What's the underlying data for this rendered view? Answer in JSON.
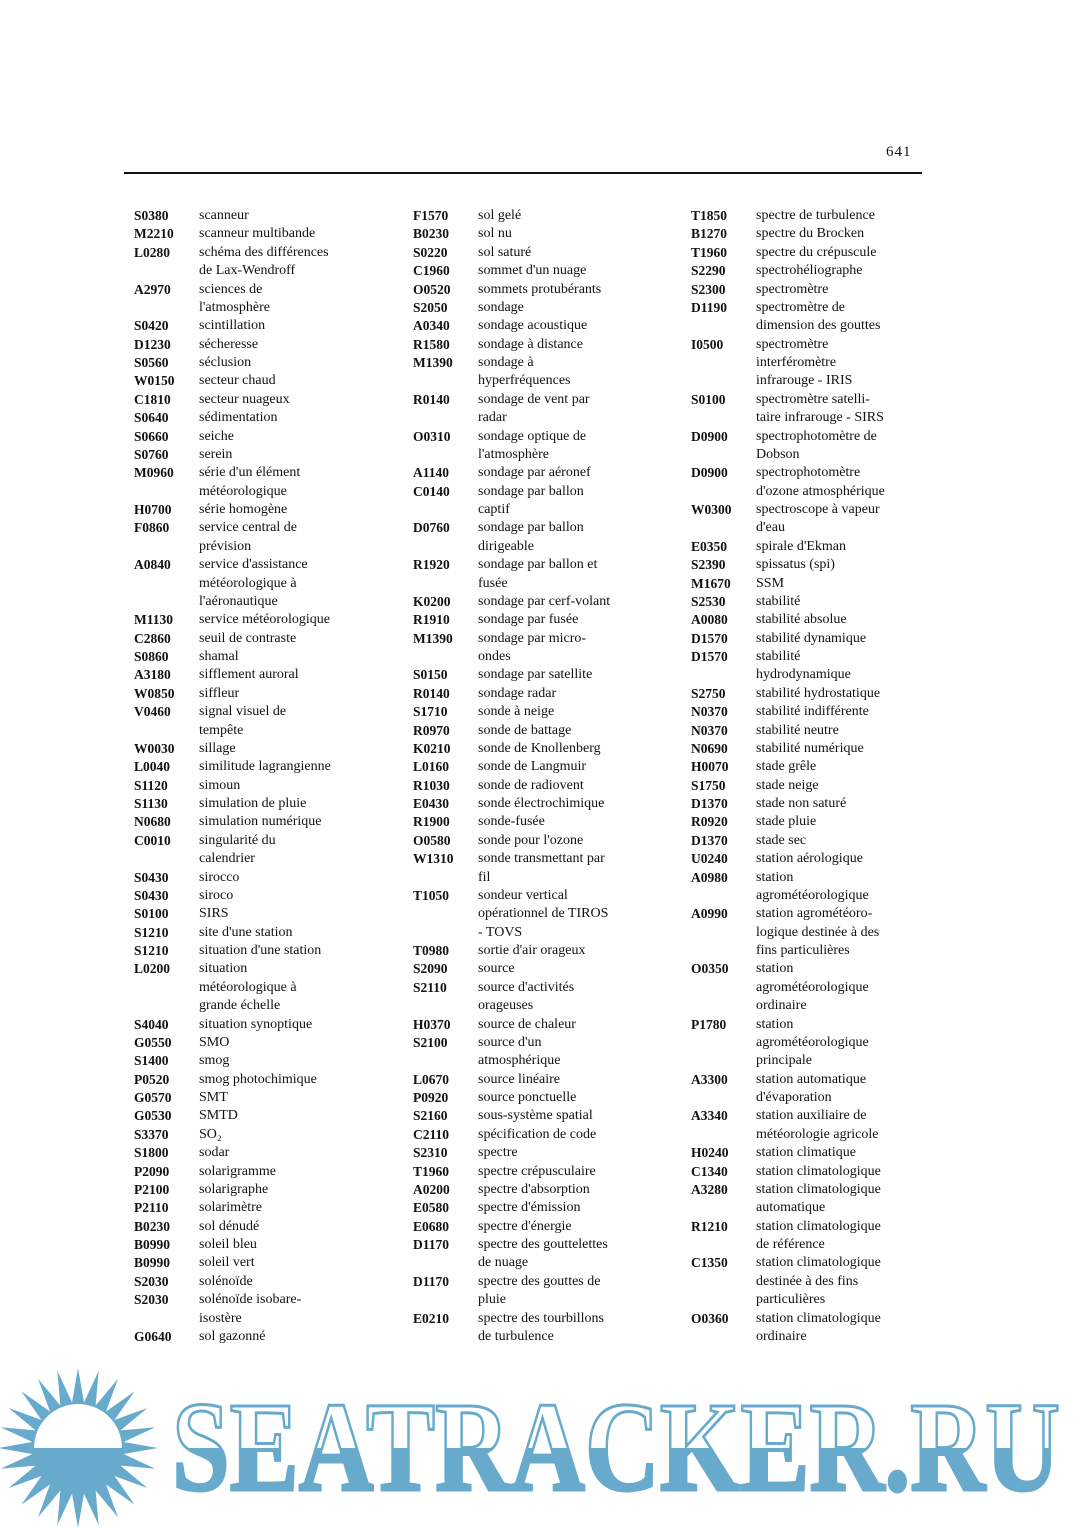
{
  "page_number": "641",
  "columns": [
    [
      {
        "code": "S0380",
        "term": "scanneur"
      },
      {
        "code": "M2210",
        "term": "scanneur multibande"
      },
      {
        "code": "L0280",
        "term": "schéma des différences\nde Lax-Wendroff"
      },
      {
        "code": "A2970",
        "term": "sciences de\nl'atmosphère"
      },
      {
        "code": "S0420",
        "term": "scintillation"
      },
      {
        "code": "D1230",
        "term": "sécheresse"
      },
      {
        "code": "S0560",
        "term": "séclusion"
      },
      {
        "code": "W0150",
        "term": "secteur chaud"
      },
      {
        "code": "C1810",
        "term": "secteur nuageux"
      },
      {
        "code": "S0640",
        "term": "sédimentation"
      },
      {
        "code": "S0660",
        "term": "seiche"
      },
      {
        "code": "S0760",
        "term": "serein"
      },
      {
        "code": "M0960",
        "term": "série d'un élément\nmétéorologique"
      },
      {
        "code": "H0700",
        "term": "série homogène"
      },
      {
        "code": "F0860",
        "term": "service central de\nprévision"
      },
      {
        "code": "A0840",
        "term": "service d'assistance\nmétéorologique à\nl'aéronautique"
      },
      {
        "code": "M1130",
        "term": "service météorologique"
      },
      {
        "code": "C2860",
        "term": "seuil de contraste"
      },
      {
        "code": "S0860",
        "term": "shamal"
      },
      {
        "code": "A3180",
        "term": "sifflement auroral"
      },
      {
        "code": "W0850",
        "term": "siffleur"
      },
      {
        "code": "V0460",
        "term": "signal visuel de\ntempête"
      },
      {
        "code": "W0030",
        "term": "sillage"
      },
      {
        "code": "L0040",
        "term": "similitude lagrangienne"
      },
      {
        "code": "S1120",
        "term": "simoun"
      },
      {
        "code": "S1130",
        "term": "simulation de pluie"
      },
      {
        "code": "N0680",
        "term": "simulation numérique"
      },
      {
        "code": "C0010",
        "term": "singularité du\ncalendrier"
      },
      {
        "code": "S0430",
        "term": "sirocco"
      },
      {
        "code": "S0430",
        "term": "siroco"
      },
      {
        "code": "S0100",
        "term": "SIRS"
      },
      {
        "code": "S1210",
        "term": "site d'une station"
      },
      {
        "code": "S1210",
        "term": "situation d'une station"
      },
      {
        "code": "L0200",
        "term": "situation\nmétéorologique à\ngrande échelle"
      },
      {
        "code": "S4040",
        "term": "situation synoptique"
      },
      {
        "code": "G0550",
        "term": "SMO"
      },
      {
        "code": "S1400",
        "term": "smog"
      },
      {
        "code": "P0520",
        "term": "smog photochimique"
      },
      {
        "code": "G0570",
        "term": "SMT"
      },
      {
        "code": "G0530",
        "term": "SMTD"
      },
      {
        "code": "S3370",
        "term": "SO₂"
      },
      {
        "code": "S1800",
        "term": "sodar"
      },
      {
        "code": "P2090",
        "term": "solarigramme"
      },
      {
        "code": "P2100",
        "term": "solarigraphe"
      },
      {
        "code": "P2110",
        "term": "solarimètre"
      },
      {
        "code": "B0230",
        "term": "sol dénudé"
      },
      {
        "code": "B0990",
        "term": "soleil bleu"
      },
      {
        "code": "B0990",
        "term": "soleil vert"
      },
      {
        "code": "S2030",
        "term": "solénoïde"
      },
      {
        "code": "S2030",
        "term": "solénoïde isobare-\nisostère"
      },
      {
        "code": "G0640",
        "term": "sol gazonné"
      }
    ],
    [
      {
        "code": "F1570",
        "term": "sol gelé"
      },
      {
        "code": "B0230",
        "term": "sol nu"
      },
      {
        "code": "S0220",
        "term": "sol saturé"
      },
      {
        "code": "C1960",
        "term": "sommet d'un nuage"
      },
      {
        "code": "O0520",
        "term": "sommets protubérants"
      },
      {
        "code": "S2050",
        "term": "sondage"
      },
      {
        "code": "A0340",
        "term": "sondage acoustique"
      },
      {
        "code": "R1580",
        "term": "sondage à distance"
      },
      {
        "code": "M1390",
        "term": "sondage à\nhyperfréquences"
      },
      {
        "code": "R0140",
        "term": "sondage de vent par\nradar"
      },
      {
        "code": "O0310",
        "term": "sondage optique de\nl'atmosphère"
      },
      {
        "code": "A1140",
        "term": "sondage par aéronef"
      },
      {
        "code": "C0140",
        "term": "sondage par ballon\ncaptif"
      },
      {
        "code": "D0760",
        "term": "sondage par ballon\ndirigeable"
      },
      {
        "code": "R1920",
        "term": "sondage par ballon et\nfusée"
      },
      {
        "code": "K0200",
        "term": "sondage par cerf-volant"
      },
      {
        "code": "R1910",
        "term": "sondage par fusée"
      },
      {
        "code": "M1390",
        "term": "sondage par micro-\nondes"
      },
      {
        "code": "S0150",
        "term": "sondage par satellite"
      },
      {
        "code": "R0140",
        "term": "sondage radar"
      },
      {
        "code": "S1710",
        "term": "sonde à neige"
      },
      {
        "code": "R0970",
        "term": "sonde de battage"
      },
      {
        "code": "K0210",
        "term": "sonde de Knollenberg"
      },
      {
        "code": "L0160",
        "term": "sonde de Langmuir"
      },
      {
        "code": "R1030",
        "term": "sonde de radiovent"
      },
      {
        "code": "E0430",
        "term": "sonde électrochimique"
      },
      {
        "code": "R1900",
        "term": "sonde-fusée"
      },
      {
        "code": "O0580",
        "term": "sonde pour l'ozone"
      },
      {
        "code": "W1310",
        "term": "sonde transmettant par\nfil"
      },
      {
        "code": "T1050",
        "term": "sondeur vertical\nopérationnel de TIROS\n- TOVS"
      },
      {
        "code": "T0980",
        "term": "sortie d'air orageux"
      },
      {
        "code": "S2090",
        "term": "source"
      },
      {
        "code": "S2110",
        "term": "source d'activités\norageuses"
      },
      {
        "code": "H0370",
        "term": "source de chaleur"
      },
      {
        "code": "S2100",
        "term": "source d'un\natmosphérique"
      },
      {
        "code": "L0670",
        "term": "source linéaire"
      },
      {
        "code": "P0920",
        "term": "source ponctuelle"
      },
      {
        "code": "S2160",
        "term": "sous-système spatial"
      },
      {
        "code": "C2110",
        "term": "spécification de code"
      },
      {
        "code": "S2310",
        "term": "spectre"
      },
      {
        "code": "T1960",
        "term": "spectre crépusculaire"
      },
      {
        "code": "A0200",
        "term": "spectre d'absorption"
      },
      {
        "code": "E0580",
        "term": "spectre d'émission"
      },
      {
        "code": "E0680",
        "term": "spectre d'énergie"
      },
      {
        "code": "D1170",
        "term": "spectre des gouttelettes\nde nuage"
      },
      {
        "code": "D1170",
        "term": "spectre des gouttes de\npluie"
      },
      {
        "code": "E0210",
        "term": "spectre des tourbillons\nde turbulence"
      }
    ],
    [
      {
        "code": "T1850",
        "term": "spectre de turbulence"
      },
      {
        "code": "B1270",
        "term": "spectre du Brocken"
      },
      {
        "code": "T1960",
        "term": "spectre du crépuscule"
      },
      {
        "code": "S2290",
        "term": "spectrohéliographe"
      },
      {
        "code": "S2300",
        "term": "spectromètre"
      },
      {
        "code": "D1190",
        "term": "spectromètre de\ndimension des gouttes"
      },
      {
        "code": "I0500",
        "term": "spectromètre\ninterféromètre\ninfrarouge - IRIS"
      },
      {
        "code": "S0100",
        "term": "spectromètre satelli-\ntaire infrarouge - SIRS"
      },
      {
        "code": "D0900",
        "term": "spectrophotomètre de\nDobson"
      },
      {
        "code": "D0900",
        "term": "spectrophotomètre\nd'ozone atmosphérique"
      },
      {
        "code": "W0300",
        "term": "spectroscope à vapeur\nd'eau"
      },
      {
        "code": "E0350",
        "term": "spirale d'Ekman"
      },
      {
        "code": "S2390",
        "term": "spissatus (spi)"
      },
      {
        "code": "M1670",
        "term": "SSM"
      },
      {
        "code": "S2530",
        "term": "stabilité"
      },
      {
        "code": "A0080",
        "term": "stabilité absolue"
      },
      {
        "code": "D1570",
        "term": "stabilité dynamique"
      },
      {
        "code": "D1570",
        "term": "stabilité\nhydrodynamique"
      },
      {
        "code": "S2750",
        "term": "stabilité hydrostatique"
      },
      {
        "code": "N0370",
        "term": "stabilité indifférente"
      },
      {
        "code": "N0370",
        "term": "stabilité neutre"
      },
      {
        "code": "N0690",
        "term": "stabilité numérique"
      },
      {
        "code": "H0070",
        "term": "stade grêle"
      },
      {
        "code": "S1750",
        "term": "stade neige"
      },
      {
        "code": "D1370",
        "term": "stade non saturé"
      },
      {
        "code": "R0920",
        "term": "stade pluie"
      },
      {
        "code": "D1370",
        "term": "stade sec"
      },
      {
        "code": "U0240",
        "term": "station aérologique"
      },
      {
        "code": "A0980",
        "term": "station\nagrométéorologique"
      },
      {
        "code": "A0990",
        "term": "station agrométéoro-\nlogique destinée à des\nfins particulières"
      },
      {
        "code": "O0350",
        "term": "station\nagrométéorologique\nordinaire"
      },
      {
        "code": "P1780",
        "term": "station\nagrométéorologique\nprincipale"
      },
      {
        "code": "A3300",
        "term": "station automatique\nd'évaporation"
      },
      {
        "code": "A3340",
        "term": "station auxiliaire de\nmétéorologie agricole"
      },
      {
        "code": "H0240",
        "term": "station climatique"
      },
      {
        "code": "C1340",
        "term": "station climatologique"
      },
      {
        "code": "A3280",
        "term": "station climatologique\nautomatique"
      },
      {
        "code": "R1210",
        "term": "station climatologique\nde référence"
      },
      {
        "code": "C1350",
        "term": "station climatologique\ndestinée à des fins\nparticulières"
      },
      {
        "code": "O0360",
        "term": "station climatologique\nordinaire"
      }
    ]
  ],
  "watermark": {
    "text": "SEATRACKER.RU",
    "color": "#67aacc",
    "icon": "sun-icon"
  }
}
